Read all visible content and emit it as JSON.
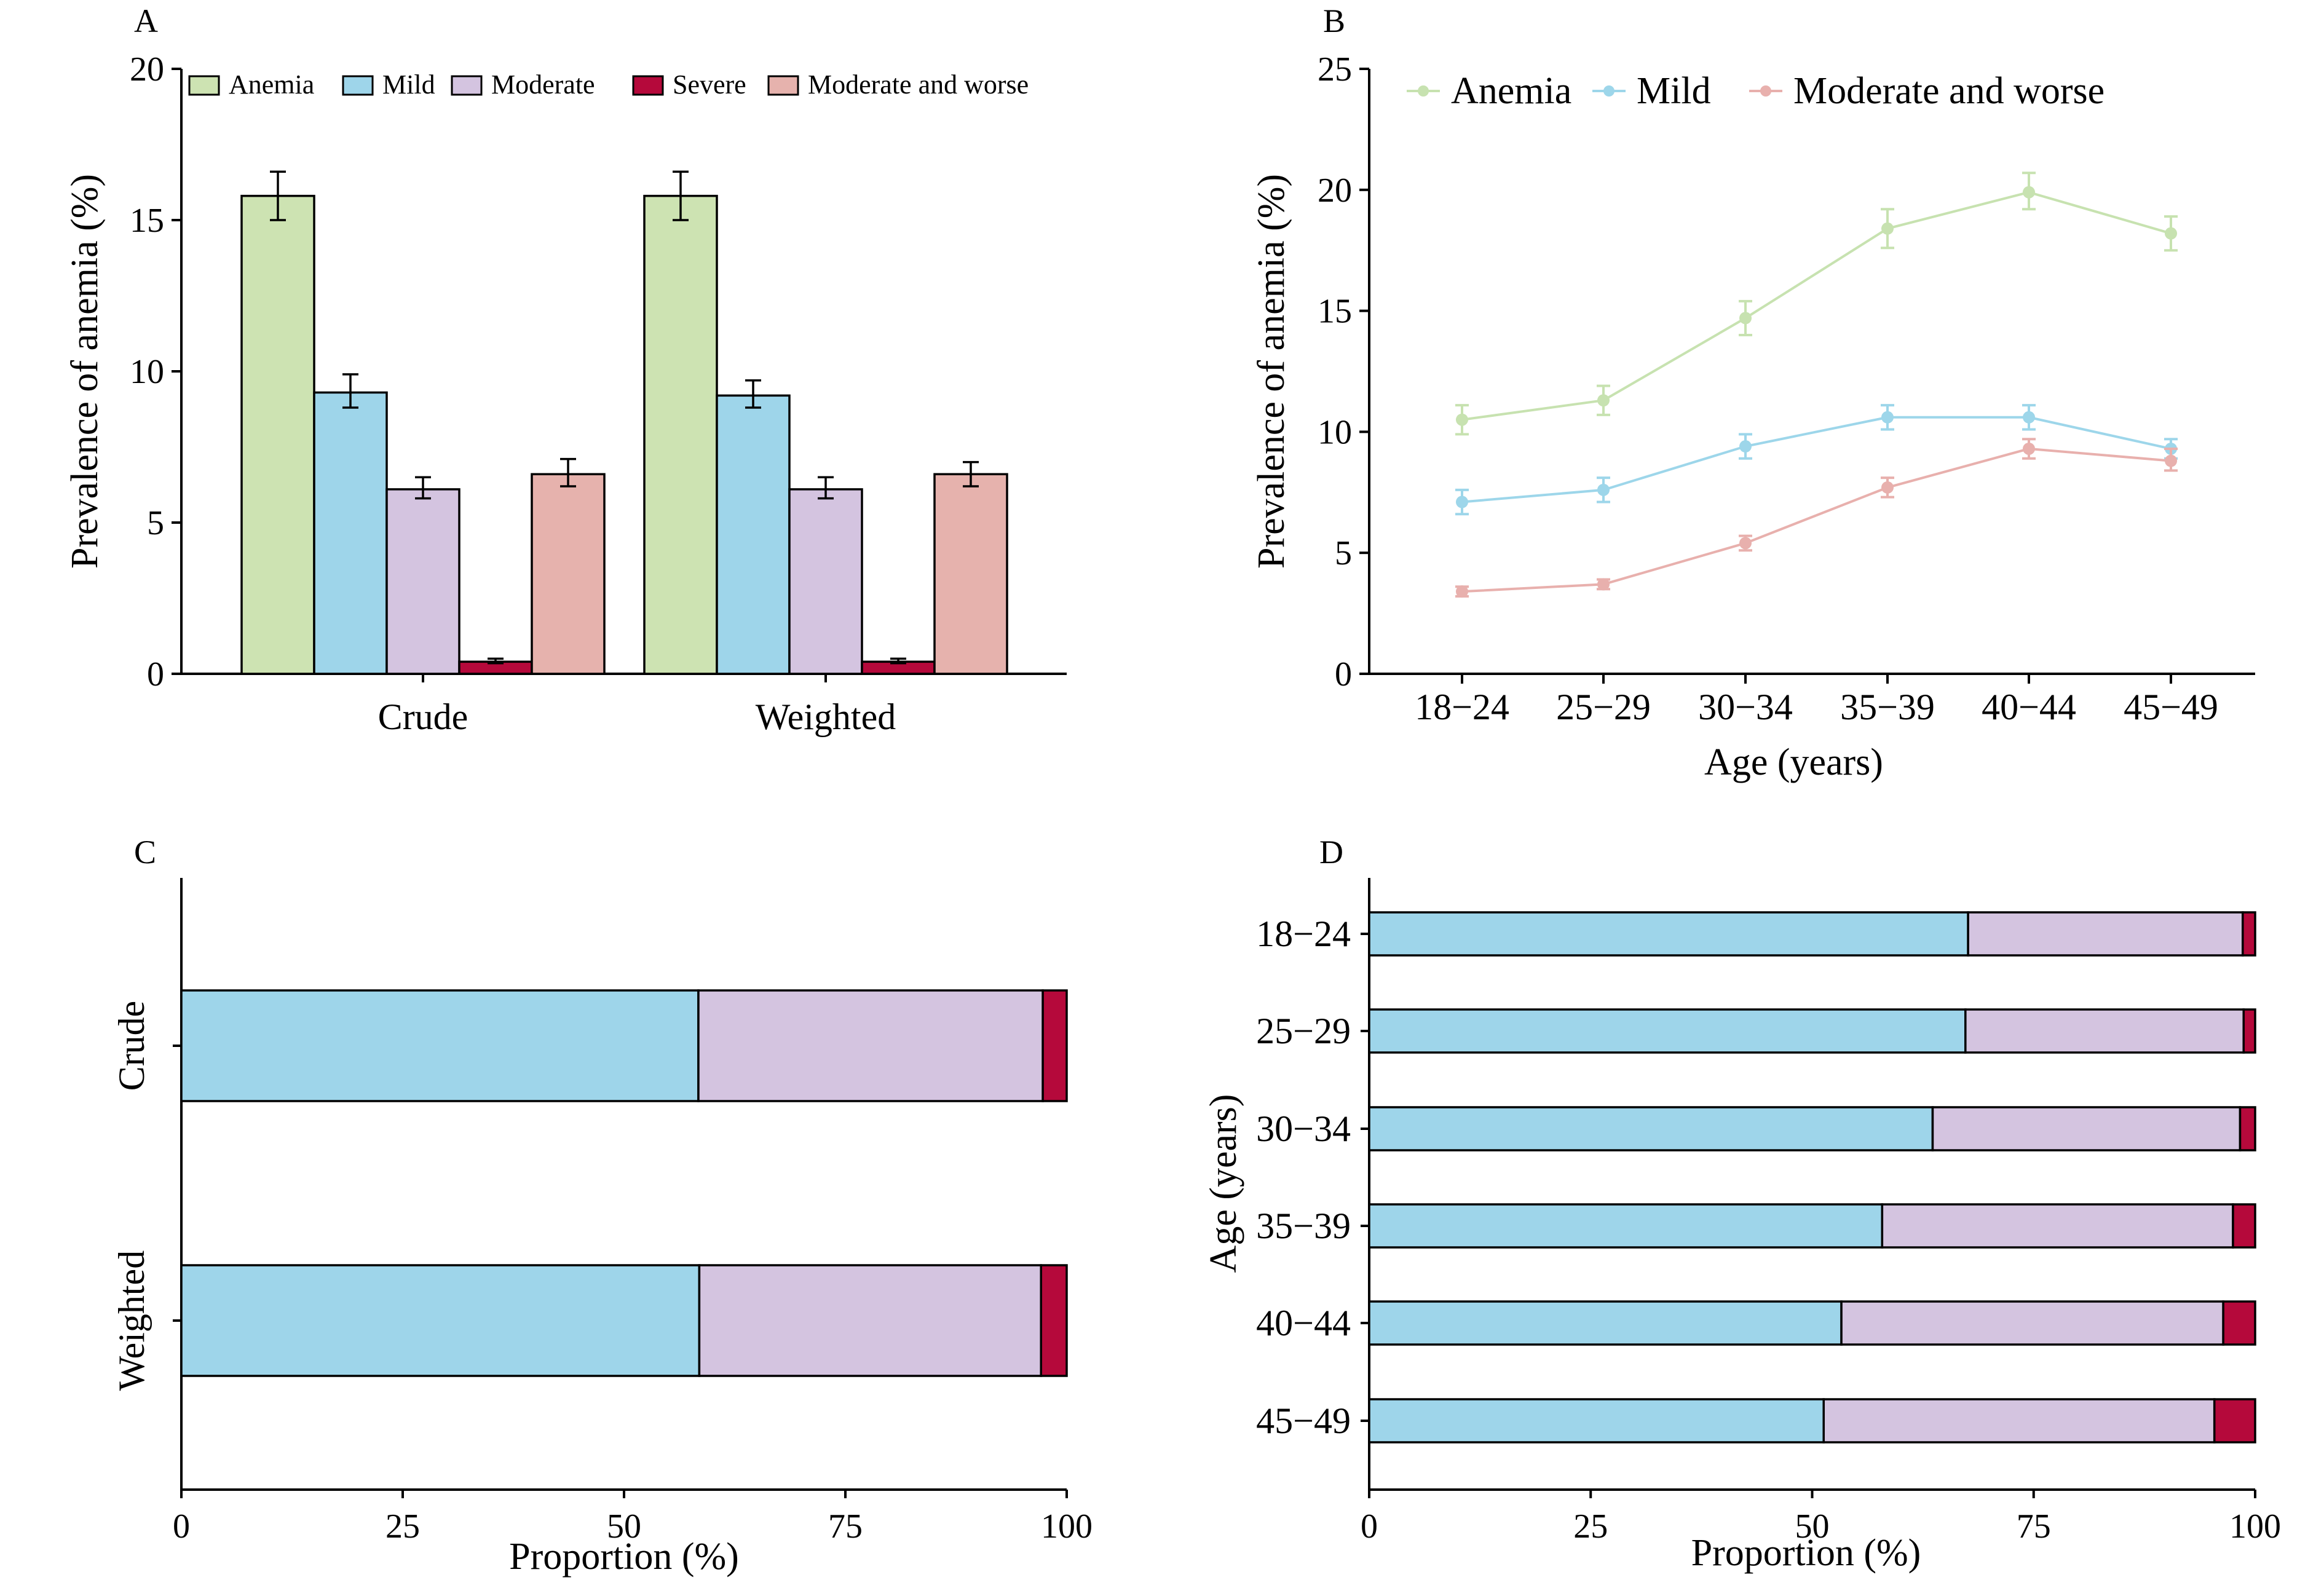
{
  "colors": {
    "Anemia": "#cde3b2",
    "Mild": "#9ed5ea",
    "Moderate": "#d4c4e0",
    "Severe": "#b5093b",
    "Moderate and worse": "#e6b2ad",
    "line_Anemia": "#c7e2b0",
    "line_Mild": "#9dd6ea",
    "line_Moderate and worse": "#e8b0ad"
  },
  "chart_data": [
    {
      "panel": "A",
      "type": "bar",
      "categories": [
        "Crude",
        "Weighted"
      ],
      "series": [
        {
          "name": "Anemia",
          "values": [
            15.8,
            15.8
          ],
          "err_low": [
            15.0,
            15.0
          ],
          "err_high": [
            16.6,
            16.6
          ]
        },
        {
          "name": "Mild",
          "values": [
            9.3,
            9.2
          ],
          "err_low": [
            8.8,
            8.8
          ],
          "err_high": [
            9.9,
            9.7
          ]
        },
        {
          "name": "Moderate",
          "values": [
            6.1,
            6.1
          ],
          "err_low": [
            5.8,
            5.8
          ],
          "err_high": [
            6.5,
            6.5
          ]
        },
        {
          "name": "Severe",
          "values": [
            0.4,
            0.4
          ],
          "err_low": [
            0.35,
            0.35
          ],
          "err_high": [
            0.5,
            0.5
          ]
        },
        {
          "name": "Moderate and worse",
          "values": [
            6.6,
            6.6
          ],
          "err_low": [
            6.2,
            6.2
          ],
          "err_high": [
            7.1,
            7.0
          ]
        }
      ],
      "ylabel": "Prevalence of anemia (%)",
      "xlabel": "",
      "ylim": [
        0,
        20
      ],
      "yticks": [
        0,
        5,
        10,
        15,
        20
      ],
      "legend": "top"
    },
    {
      "panel": "B",
      "type": "line",
      "x": [
        "18−24",
        "25−29",
        "30−34",
        "35−39",
        "40−44",
        "45−49"
      ],
      "series": [
        {
          "name": "Anemia",
          "values": [
            10.5,
            11.3,
            14.7,
            18.4,
            19.9,
            18.2
          ],
          "err_low": [
            9.9,
            10.7,
            14.0,
            17.6,
            19.2,
            17.5
          ],
          "err_high": [
            11.1,
            11.9,
            15.4,
            19.2,
            20.7,
            18.9
          ]
        },
        {
          "name": "Mild",
          "values": [
            7.1,
            7.6,
            9.4,
            10.6,
            10.6,
            9.3
          ],
          "err_low": [
            6.6,
            7.1,
            8.9,
            10.1,
            10.1,
            8.9
          ],
          "err_high": [
            7.6,
            8.1,
            9.9,
            11.1,
            11.1,
            9.7
          ]
        },
        {
          "name": "Moderate and worse",
          "values": [
            3.4,
            3.7,
            5.4,
            7.7,
            9.3,
            8.8
          ],
          "err_low": [
            3.2,
            3.5,
            5.1,
            7.3,
            8.9,
            8.4
          ],
          "err_high": [
            3.6,
            3.9,
            5.7,
            8.1,
            9.7,
            9.3
          ]
        }
      ],
      "ylabel": "Prevalence of anemia (%)",
      "xlabel": "Age (years)",
      "ylim": [
        0,
        25
      ],
      "yticks": [
        0,
        5,
        10,
        15,
        20,
        25
      ],
      "legend": "top-left"
    },
    {
      "panel": "C",
      "type": "bar",
      "orientation": "horizontal-stacked",
      "categories": [
        "Crude",
        "Weighted"
      ],
      "series": [
        {
          "name": "Mild",
          "values": [
            58.4,
            58.5
          ]
        },
        {
          "name": "Moderate",
          "values": [
            38.9,
            38.6
          ]
        },
        {
          "name": "Severe",
          "values": [
            2.7,
            2.9
          ]
        }
      ],
      "xlabel": "Proportion (%)",
      "ylabel": "",
      "xlim": [
        0,
        100
      ],
      "xticks": [
        0,
        25,
        50,
        75,
        100
      ]
    },
    {
      "panel": "D",
      "type": "bar",
      "orientation": "horizontal-stacked",
      "categories": [
        "18−24",
        "25−29",
        "30−34",
        "35−39",
        "40−44",
        "45−49"
      ],
      "series": [
        {
          "name": "Mild",
          "values": [
            67.6,
            67.3,
            63.6,
            57.9,
            53.3,
            51.3
          ]
        },
        {
          "name": "Moderate",
          "values": [
            31.0,
            31.4,
            34.7,
            39.6,
            43.1,
            44.1
          ]
        },
        {
          "name": "Severe",
          "values": [
            1.4,
            1.3,
            1.7,
            2.5,
            3.6,
            4.6
          ]
        }
      ],
      "xlabel": "Proportion (%)",
      "ylabel": "Age (years)",
      "xlim": [
        0,
        100
      ],
      "xticks": [
        0,
        25,
        50,
        75,
        100
      ]
    }
  ],
  "panel_labels": [
    "A",
    "B",
    "C",
    "D"
  ]
}
